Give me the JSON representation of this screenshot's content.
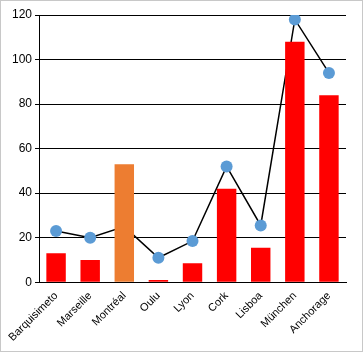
{
  "chart_data": {
    "type": "bar",
    "categories": [
      "Barquisimeto",
      "Marseille",
      "Montréal",
      "Oulu",
      "Lyon",
      "Cork",
      "Lisboa",
      "München",
      "Anchorage"
    ],
    "series": [
      {
        "type": "bar",
        "colors": [
          "#ff0000",
          "#ff0000",
          "#ed7d31",
          "#ff0000",
          "#ff0000",
          "#ff0000",
          "#ff0000",
          "#ff0000",
          "#ff0000"
        ],
        "values": [
          13,
          10,
          53,
          1,
          8.5,
          42,
          15.5,
          108,
          84
        ]
      },
      {
        "type": "line",
        "color": "#5b9bd5",
        "marker": "circle",
        "values": [
          23,
          20,
          25,
          11,
          18.5,
          52,
          25.5,
          118,
          94
        ]
      }
    ],
    "ylim": [
      0,
      120
    ],
    "yticks": [
      0,
      20,
      40,
      60,
      80,
      100,
      120
    ],
    "grid": true
  }
}
